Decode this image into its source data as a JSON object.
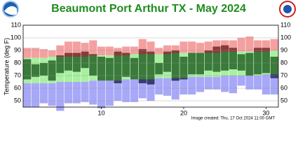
{
  "chart_data": {
    "type": "temperature-range",
    "title": "Beaumont Port Arthur TX - May 2024",
    "y_label": "Temperature (deg F)",
    "footnote": "Image created: Thu, 17 Oct 2024 11:00 GMT",
    "x": [
      1,
      2,
      3,
      4,
      5,
      6,
      7,
      8,
      9,
      10,
      11,
      12,
      13,
      14,
      15,
      16,
      17,
      18,
      19,
      20,
      21,
      22,
      23,
      24,
      25,
      26,
      27,
      28,
      29,
      30,
      31
    ],
    "record_high": [
      92,
      92,
      91,
      90,
      94,
      97,
      97,
      96,
      98,
      93,
      93,
      92,
      93,
      93,
      99,
      97,
      92,
      94,
      94,
      97,
      97,
      96,
      97,
      98,
      98,
      98,
      100,
      101,
      98,
      98,
      99
    ],
    "normal_high": [
      84,
      84,
      84,
      85,
      85,
      85,
      85,
      85,
      86,
      86,
      86,
      86,
      86,
      87,
      87,
      87,
      87,
      87,
      88,
      88,
      88,
      88,
      88,
      88,
      89,
      89,
      89,
      89,
      89,
      89,
      90
    ],
    "normal_low": [
      64,
      64,
      64,
      64,
      65,
      65,
      65,
      65,
      66,
      66,
      66,
      66,
      67,
      67,
      67,
      67,
      68,
      68,
      68,
      68,
      69,
      69,
      69,
      69,
      70,
      70,
      70,
      70,
      70,
      71,
      71
    ],
    "record_low": [
      45,
      45,
      48,
      46,
      42,
      48,
      48,
      49,
      47,
      44,
      46,
      50,
      49,
      49,
      52,
      50,
      55,
      54,
      51,
      55,
      55,
      57,
      59,
      59,
      57,
      56,
      62,
      59,
      59,
      55,
      55
    ],
    "observed_high": [
      83,
      79,
      80,
      82,
      86,
      88,
      88,
      89,
      87,
      85,
      84,
      89,
      88,
      84,
      91,
      89,
      80,
      89,
      90,
      85,
      88,
      88,
      90,
      93,
      94,
      92,
      87,
      88,
      92,
      92,
      85
    ],
    "observed_low": [
      67,
      69,
      70,
      66,
      72,
      74,
      73,
      76,
      70,
      66,
      66,
      64,
      69,
      67,
      64,
      63,
      71,
      73,
      66,
      67,
      71,
      71,
      74,
      73,
      74,
      75,
      74,
      70,
      71,
      72,
      68
    ],
    "colors": {
      "record_high": "#f4a0a0",
      "normal": "#a8f0a0",
      "record_low": "#a8a8f8",
      "observed": "#3a7a3a",
      "above_normal": "#8b3a3a",
      "below_normal": "#3a3a70"
    },
    "xlim": [
      0.5,
      31.5
    ],
    "xticks": [
      10,
      20,
      30
    ],
    "ylim": [
      45,
      110
    ],
    "yticks": [
      50,
      60,
      70,
      80,
      90,
      100,
      110
    ],
    "grid": true
  }
}
